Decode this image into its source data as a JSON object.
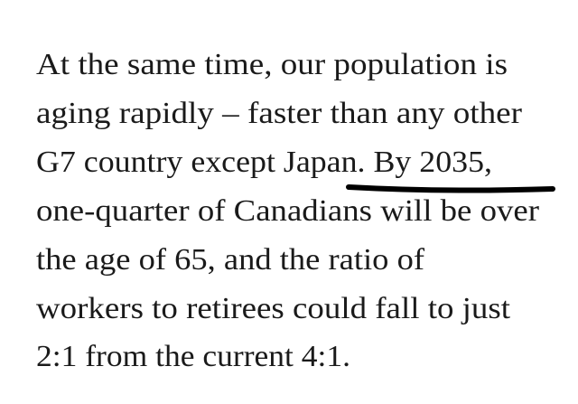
{
  "paragraph": {
    "lines": [
      "At the same time, our population is",
      "aging rapidly – faster than any other",
      "G7 country except Japan. By 2035,",
      "one-quarter of Canadians will be over",
      "the age of 65, and the ratio of",
      "workers to retirees could fall to just",
      "2:1 from the current 4:1."
    ]
  }
}
